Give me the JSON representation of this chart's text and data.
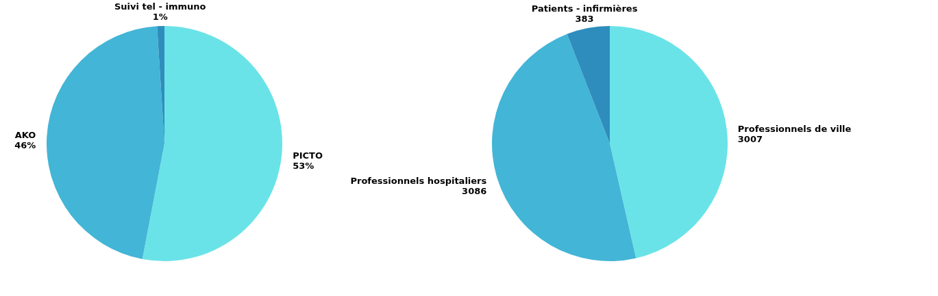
{
  "chart_data": [
    {
      "type": "pie",
      "categories": [
        "PICTO",
        "AKO",
        "Suivi tel - immuno"
      ],
      "values": [
        53,
        46,
        1
      ],
      "colors": [
        "#6ae3e8",
        "#43b5d6",
        "#2e8dbd"
      ],
      "value_labels": [
        "53%",
        "46%",
        "1%"
      ],
      "legend": false
    },
    {
      "type": "pie",
      "categories": [
        "Professionnels de ville",
        "Professionnels hospitaliers",
        "Patients - infirmières"
      ],
      "values": [
        3007,
        3086,
        383
      ],
      "colors": [
        "#6ae3e8",
        "#43b5d6",
        "#2e8dbd"
      ],
      "data_labels": true,
      "legend": false
    }
  ]
}
